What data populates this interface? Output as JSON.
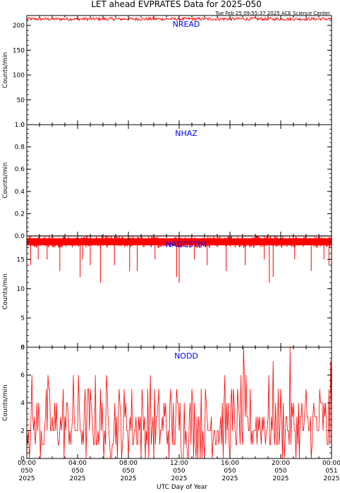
{
  "title": "LET ahead EVPRATES Data for 2025-050",
  "timestamp": "Tue Feb 25 09:55:37 2025 ACE Science Center",
  "xlabel": "UTC Day of Year",
  "colors": {
    "data": "#ff0000",
    "label": "#0000ff",
    "axis": "#000000"
  },
  "x_ticks": [
    {
      "l1": "00:00",
      "l2": "050",
      "l3": "2025"
    },
    {
      "l1": "04:00",
      "l2": "050",
      "l3": "2025"
    },
    {
      "l1": "08:00",
      "l2": "050",
      "l3": "2025"
    },
    {
      "l1": "12:00",
      "l2": "050",
      "l3": "2025"
    },
    {
      "l1": "16:00",
      "l2": "050",
      "l3": "2025"
    },
    {
      "l1": "20:00",
      "l2": "050",
      "l3": "2025"
    },
    {
      "l1": "00:00",
      "l2": "051",
      "l3": "2025"
    }
  ],
  "chart_data": [
    {
      "type": "line",
      "label": "NREAD",
      "ylabel": "Counts/min",
      "ylim": [
        0,
        220
      ],
      "yticks": [
        0,
        50,
        100,
        150,
        200
      ],
      "xlim_hours": [
        0,
        24
      ],
      "series": [
        {
          "x_hours": [
            0,
            24
          ],
          "values": [
            213,
            213
          ],
          "noise": 3
        }
      ]
    },
    {
      "type": "line",
      "label": "NHAZ",
      "ylabel": "Counts/min",
      "ylim": [
        0,
        1
      ],
      "yticks": [
        0.0,
        0.2,
        0.4,
        0.6,
        0.8,
        1.0
      ],
      "xlim_hours": [
        0,
        24
      ],
      "series": [
        {
          "x_hours": [
            0,
            24
          ],
          "values": [
            0,
            0
          ],
          "noise": 0
        }
      ]
    },
    {
      "type": "line",
      "label": "NADCSTIM",
      "ylabel": "Counts/min",
      "ylim": [
        0,
        19
      ],
      "yticks": [
        0,
        5,
        10,
        15
      ],
      "xlim_hours": [
        0,
        24
      ],
      "series": [
        {
          "x_hours": [
            0,
            24
          ],
          "values": [
            18,
            18
          ],
          "band": [
            17,
            19
          ],
          "dips": [
            [
              0.3,
              14
            ],
            [
              0.9,
              15
            ],
            [
              1.6,
              15
            ],
            [
              2.6,
              13
            ],
            [
              4.2,
              12
            ],
            [
              4.4,
              15
            ],
            [
              5.0,
              14
            ],
            [
              5.8,
              11
            ],
            [
              6.9,
              14
            ],
            [
              8.1,
              13
            ],
            [
              8.7,
              13
            ],
            [
              10.1,
              15
            ],
            [
              11.8,
              12
            ],
            [
              12.0,
              11
            ],
            [
              13.2,
              15
            ],
            [
              14.2,
              14
            ],
            [
              15.7,
              13
            ],
            [
              17.2,
              14
            ],
            [
              18.7,
              15
            ],
            [
              19.1,
              11
            ],
            [
              19.4,
              12
            ],
            [
              21.1,
              15
            ],
            [
              22.4,
              13
            ],
            [
              23.4,
              15
            ],
            [
              23.8,
              14
            ]
          ]
        }
      ]
    },
    {
      "type": "line",
      "label": "NODD",
      "ylabel": "Counts/min",
      "ylim": [
        0,
        8
      ],
      "yticks": [
        0,
        2,
        4,
        6,
        8
      ],
      "xlim_hours": [
        0,
        24
      ],
      "series": [
        {
          "x_hours": [
            0,
            24
          ],
          "values": [
            2.5,
            2.5
          ],
          "range": [
            0,
            8
          ],
          "distribution": "poisson-like, mean 2.5"
        }
      ]
    }
  ]
}
